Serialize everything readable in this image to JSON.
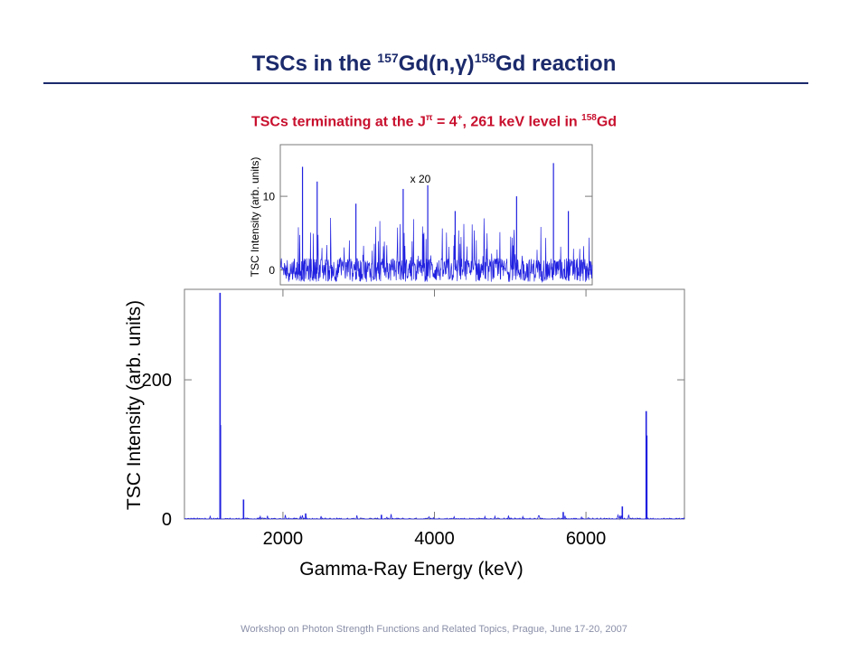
{
  "header": {
    "title_pre": "TSCs in the ",
    "title_sup1": "157",
    "title_mid": "Gd(n,γ)",
    "title_sup2": "158",
    "title_post": "Gd reaction"
  },
  "subtitle": {
    "pre": "TSCs terminating at the J",
    "pi": "π",
    "eq": " = 4",
    "plus": "+",
    "post": ", 261 keV level in ",
    "sup": "158",
    "tail": "Gd"
  },
  "footer": "Workshop on Photon Strength Functions and Related Topics, Prague, June 17-20, 2007",
  "chart_data": [
    {
      "type": "line",
      "xlabel": "Gamma-Ray Energy (keV)",
      "ylabel": "TSC Intensity (arb. units)",
      "xlim": [
        700,
        7300
      ],
      "ylim": [
        0,
        330
      ],
      "xticks": [
        2000,
        4000,
        6000
      ],
      "yticks": [
        0,
        200
      ],
      "series_color": "#2020e0",
      "peaks": [
        {
          "x": 1170,
          "y": 325
        },
        {
          "x": 1175,
          "y": 135
        },
        {
          "x": 1480,
          "y": 28
        },
        {
          "x": 2300,
          "y": 8
        },
        {
          "x": 3300,
          "y": 6
        },
        {
          "x": 5700,
          "y": 10
        },
        {
          "x": 6480,
          "y": 18
        },
        {
          "x": 6795,
          "y": 155
        },
        {
          "x": 6803,
          "y": 120
        }
      ]
    },
    {
      "type": "line",
      "annotation": "x 20",
      "ylabel": "TSC Intensity (arb. units)",
      "xlim": [
        700,
        7300
      ],
      "ylim": [
        -2,
        17
      ],
      "yticks": [
        0,
        10
      ],
      "series_color": "#2020e0",
      "peaks": [
        {
          "x": 1170,
          "y": 14
        },
        {
          "x": 1480,
          "y": 12
        },
        {
          "x": 2300,
          "y": 9
        },
        {
          "x": 3300,
          "y": 11
        },
        {
          "x": 3820,
          "y": 11.5
        },
        {
          "x": 4400,
          "y": 8
        },
        {
          "x": 5700,
          "y": 10
        },
        {
          "x": 6480,
          "y": 14.5
        },
        {
          "x": 6795,
          "y": 8
        }
      ]
    }
  ]
}
